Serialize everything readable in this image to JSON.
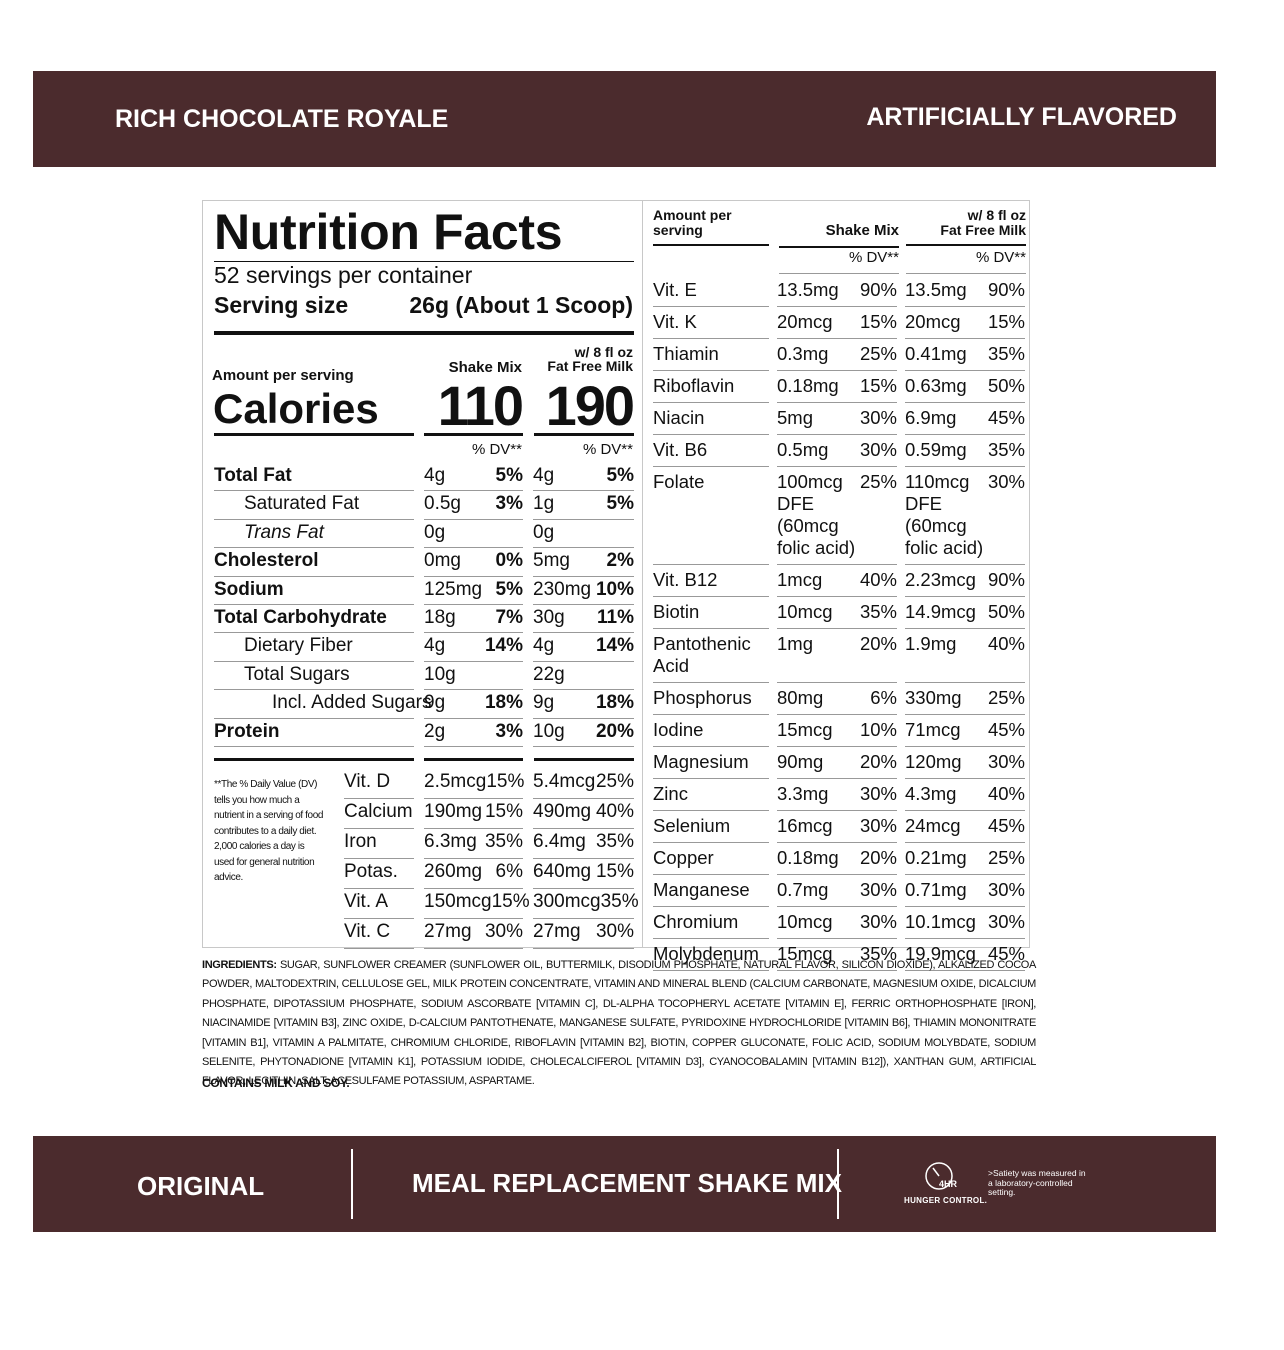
{
  "header": {
    "left": "RICH CHOCOLATE ROYALE",
    "right": "ARTIFICIALLY FLAVORED"
  },
  "facts": {
    "title": "Nutrition Facts",
    "servings": "52 servings per container",
    "serving_size_label": "Serving size",
    "serving_size_value": "26g (About 1 Scoop)",
    "amount_per_serving": "Amount per serving",
    "calories_label": "Calories",
    "shake_header": "Shake Mix",
    "milk_header": [
      "w/ 8 fl oz",
      "Fat Free Milk"
    ],
    "calories": [
      "110",
      "190"
    ],
    "dv_header": "% DV**",
    "nutrients": [
      {
        "name": "Total Fat",
        "shake_amount": "4g",
        "shake_dv": "5%",
        "milk_amount": "4g",
        "milk_dv": "5%"
      },
      {
        "name": "Saturated Fat",
        "shake_amount": "0.5g",
        "shake_dv": "3%",
        "milk_amount": "1g",
        "milk_dv": "5%"
      },
      {
        "name": "Trans Fat",
        "shake_amount": "0g",
        "milk_amount": "0g"
      },
      {
        "name": "Cholesterol",
        "shake_amount": "0mg",
        "shake_dv": "0%",
        "milk_amount": "5mg",
        "milk_dv": "2%"
      },
      {
        "name": "Sodium",
        "shake_amount": "125mg",
        "shake_dv": "5%",
        "milk_amount": "230mg",
        "milk_dv": "10%"
      },
      {
        "name": "Total Carbohydrate",
        "shake_amount": "18g",
        "shake_dv": "7%",
        "milk_amount": "30g",
        "milk_dv": "11%"
      },
      {
        "name": "Dietary Fiber",
        "shake_amount": "4g",
        "shake_dv": "14%",
        "milk_amount": "4g",
        "milk_dv": "14%"
      },
      {
        "name": "Total Sugars",
        "shake_amount": "10g",
        "milk_amount": "22g"
      },
      {
        "name": "Incl. Added Sugars",
        "shake_amount": "9g",
        "shake_dv": "18%",
        "milk_amount": "9g",
        "milk_dv": "18%"
      },
      {
        "name": "Protein",
        "shake_amount": "2g",
        "shake_dv": "3%",
        "milk_amount": "10g",
        "milk_dv": "20%"
      }
    ],
    "footnote": "**The % Daily Value (DV) tells you how much a nutrient in a serving of food contributes to a daily diet. 2,000 calories a day is used for general nutrition advice.",
    "vitamins": [
      {
        "name": "Vit. D",
        "shake_amount": "2.5mcg",
        "shake_dv": "15%",
        "milk_amount": "5.4mcg",
        "milk_dv": "25%"
      },
      {
        "name": "Calcium",
        "shake_amount": "190mg",
        "shake_dv": "15%",
        "milk_amount": "490mg",
        "milk_dv": "40%"
      },
      {
        "name": "Iron",
        "shake_amount": "6.3mg",
        "shake_dv": "35%",
        "milk_amount": "6.4mg",
        "milk_dv": "35%"
      },
      {
        "name": "Potas.",
        "shake_amount": "260mg",
        "shake_dv": "6%",
        "milk_amount": "640mg",
        "milk_dv": "15%"
      },
      {
        "name": "Vit. A",
        "shake_amount": "150mcg",
        "shake_dv": "15%",
        "milk_amount": "300mcg",
        "milk_dv": "35%"
      },
      {
        "name": "Vit. C",
        "shake_amount": "27mg",
        "shake_dv": "30%",
        "milk_amount": "27mg",
        "milk_dv": "30%"
      }
    ]
  },
  "right": {
    "amount_per_serving": "Amount per serving",
    "shake_header": "Shake Mix",
    "milk_header": [
      "w/ 8 fl oz",
      "Fat Free Milk"
    ],
    "dv_header": "% DV**",
    "rows": [
      {
        "name": "Vit. E",
        "shake_amount": "13.5mg",
        "shake_dv": "90%",
        "milk_amount": "13.5mg",
        "milk_dv": "90%"
      },
      {
        "name": "Vit. K",
        "shake_amount": "20mcg",
        "shake_dv": "15%",
        "milk_amount": "20mcg",
        "milk_dv": "15%"
      },
      {
        "name": "Thiamin",
        "shake_amount": "0.3mg",
        "shake_dv": "25%",
        "milk_amount": "0.41mg",
        "milk_dv": "35%"
      },
      {
        "name": "Riboflavin",
        "shake_amount": "0.18mg",
        "shake_dv": "15%",
        "milk_amount": "0.63mg",
        "milk_dv": "50%"
      },
      {
        "name": "Niacin",
        "shake_amount": "5mg",
        "shake_dv": "30%",
        "milk_amount": "6.9mg",
        "milk_dv": "45%"
      },
      {
        "name": "Vit. B6",
        "shake_amount": "0.5mg",
        "shake_dv": "30%",
        "milk_amount": "0.59mg",
        "milk_dv": "35%"
      },
      {
        "name": "Folate",
        "shake_amount": "100mcg DFE (60mcg folic acid)",
        "shake_dv": "25%",
        "milk_amount": "110mcg DFE (60mcg folic acid)",
        "milk_dv": "30%"
      },
      {
        "name": "Vit. B12",
        "shake_amount": "1mcg",
        "shake_dv": "40%",
        "milk_amount": "2.23mcg",
        "milk_dv": "90%"
      },
      {
        "name": "Biotin",
        "shake_amount": "10mcg",
        "shake_dv": "35%",
        "milk_amount": "14.9mcg",
        "milk_dv": "50%"
      },
      {
        "name": "Pantothenic Acid",
        "shake_amount": "1mg",
        "shake_dv": "20%",
        "milk_amount": "1.9mg",
        "milk_dv": "40%"
      },
      {
        "name": "Phosphorus",
        "shake_amount": "80mg",
        "shake_dv": "6%",
        "milk_amount": "330mg",
        "milk_dv": "25%"
      },
      {
        "name": "Iodine",
        "shake_amount": "15mcg",
        "shake_dv": "10%",
        "milk_amount": "71mcg",
        "milk_dv": "45%"
      },
      {
        "name": "Magnesium",
        "shake_amount": "90mg",
        "shake_dv": "20%",
        "milk_amount": "120mg",
        "milk_dv": "30%"
      },
      {
        "name": "Zinc",
        "shake_amount": "3.3mg",
        "shake_dv": "30%",
        "milk_amount": "4.3mg",
        "milk_dv": "40%"
      },
      {
        "name": "Selenium",
        "shake_amount": "16mcg",
        "shake_dv": "30%",
        "milk_amount": "24mcg",
        "milk_dv": "45%"
      },
      {
        "name": "Copper",
        "shake_amount": "0.18mg",
        "shake_dv": "20%",
        "milk_amount": "0.21mg",
        "milk_dv": "25%"
      },
      {
        "name": "Manganese",
        "shake_amount": "0.7mg",
        "shake_dv": "30%",
        "milk_amount": "0.71mg",
        "milk_dv": "30%"
      },
      {
        "name": "Chromium",
        "shake_amount": "10mcg",
        "shake_dv": "30%",
        "milk_amount": "10.1mcg",
        "milk_dv": "30%"
      },
      {
        "name": "Molybdenum",
        "shake_amount": "15mcg",
        "shake_dv": "35%",
        "milk_amount": "19.9mcg",
        "milk_dv": "45%"
      }
    ]
  },
  "ingredients": {
    "label": "INGREDIENTS:",
    "text": "SUGAR, SUNFLOWER CREAMER (SUNFLOWER OIL, BUTTERMILK, DISODIUM PHOSPHATE, NATURAL FLAVOR, SILICON DIOXIDE), ALKALIZED COCOA POWDER, MALTODEXTRIN, CELLULOSE GEL, MILK PROTEIN CONCENTRATE, VITAMIN AND MINERAL BLEND (CALCIUM CARBONATE, MAGNESIUM OXIDE, DICALCIUM PHOSPHATE, DIPOTASSIUM PHOSPHATE, SODIUM ASCORBATE [VITAMIN C], DL-ALPHA TOCOPHERYL ACETATE [VITAMIN E], FERRIC ORTHOPHOSPHATE [IRON], NIACINAMIDE [VITAMIN B3], ZINC OXIDE, D-CALCIUM PANTOTHENATE, MANGANESE SULFATE, PYRIDOXINE HYDROCHLORIDE [VITAMIN B6], THIAMIN MONONITRATE [VITAMIN B1], VITAMIN A PALMITATE, CHROMIUM CHLORIDE, RIBOFLAVIN [VITAMIN B2], BIOTIN, COPPER GLUCONATE, FOLIC ACID, SODIUM MOLYBDATE, SODIUM SELENITE, PHYTONADIONE [VITAMIN K1], POTASSIUM IODIDE, CHOLECALCIFEROL [VITAMIN D3], CYANOCOBALAMIN [VITAMIN B12]), XANTHAN GUM, ARTIFICIAL FLAVOR, LECITHIN, SALT, ACESULFAME POTASSIUM, ASPARTAME.",
    "contains": "CONTAINS MILK AND SOY."
  },
  "footer": {
    "left": "ORIGINAL",
    "center": "MEAL REPLACEMENT SHAKE MIX",
    "badge_hours": "4HR",
    "badge_label": "HUNGER CONTROL.",
    "note": ">Satiety was measured in a laboratory-controlled setting."
  }
}
